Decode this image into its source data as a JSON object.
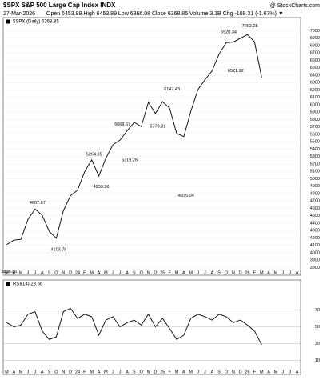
{
  "chart_data": [
    {
      "type": "line",
      "title": "$SPX S&P 500 Large Cap Index INDX",
      "subtitle": "27-Mar-2026",
      "quote": "Open 6453.89 High 6453.89 Low 6366.08 Close 6368.85 Volume 3.1B Chg -108.31 (-1.67%) ▼",
      "source": "@ StockCharts.com",
      "categories": [
        "M",
        "A",
        "M",
        "J",
        "J",
        "A",
        "S",
        "O",
        "N",
        "D",
        "24",
        "F",
        "M",
        "A",
        "M",
        "J",
        "J",
        "A",
        "S",
        "O",
        "N",
        "D",
        "25",
        "F",
        "M",
        "A",
        "M",
        "J",
        "J",
        "A",
        "S",
        "O",
        "N",
        "D",
        "26",
        "F",
        "M",
        "A",
        "M",
        "J",
        "J",
        "A"
      ],
      "series": [
        {
          "name": "$SPX (Daily) 6368.85",
          "color": "#000000",
          "values": [
            4109,
            4169,
            4180,
            4450,
            4589,
            4508,
            4288,
            4194,
            4568,
            4770,
            4846,
            5096,
            5254,
            5036,
            5278,
            5460,
            5522,
            5648,
            5762,
            5705,
            6032,
            5882,
            6041,
            5955,
            5612,
            5569,
            5912,
            6205,
            6339,
            6460,
            6688,
            6840,
            6849,
            6900,
            6950,
            6850,
            6368.85,
            null,
            null,
            null,
            null,
            null
          ]
        }
      ],
      "annotations": [
        3808.86,
        4607.07,
        4103.78,
        5264.85,
        4953.56,
        5669.67,
        5319.26,
        6147.43,
        5773.31,
        4835.04,
        6920.34,
        6521.92,
        7002.28
      ],
      "ylim": [
        3760,
        7060
      ],
      "yticks": [
        3800,
        3900,
        4000,
        4100,
        4200,
        4300,
        4400,
        4500,
        4600,
        4700,
        4800,
        4900,
        5000,
        5100,
        5200,
        5300,
        5400,
        5500,
        5600,
        5700,
        5800,
        5900,
        6000,
        6100,
        6200,
        6300,
        6400,
        6500,
        6600,
        6700,
        6800,
        6900,
        7000
      ],
      "grid": true
    },
    {
      "type": "line",
      "categories": [
        "M",
        "A",
        "M",
        "J",
        "J",
        "A",
        "S",
        "O",
        "N",
        "D",
        "24",
        "F",
        "M",
        "A",
        "M",
        "J",
        "J",
        "A",
        "S",
        "O",
        "N",
        "D",
        "25",
        "F",
        "M",
        "A",
        "M",
        "J",
        "J",
        "A",
        "S",
        "O",
        "N",
        "D",
        "26",
        "F",
        "M",
        "A",
        "M",
        "J",
        "J",
        "A"
      ],
      "series": [
        {
          "name": "RSI(14) 28.66",
          "color": "#000000",
          "values": [
            55,
            50,
            52,
            65,
            68,
            45,
            35,
            38,
            68,
            72,
            60,
            65,
            62,
            40,
            58,
            62,
            50,
            55,
            58,
            52,
            65,
            50,
            60,
            48,
            35,
            40,
            60,
            65,
            62,
            58,
            65,
            62,
            55,
            58,
            52,
            45,
            28.66,
            null,
            null,
            null,
            null,
            null
          ]
        }
      ],
      "ylim": [
        0,
        100
      ],
      "yticks": [
        10,
        30,
        50,
        70
      ],
      "grid": true
    }
  ]
}
